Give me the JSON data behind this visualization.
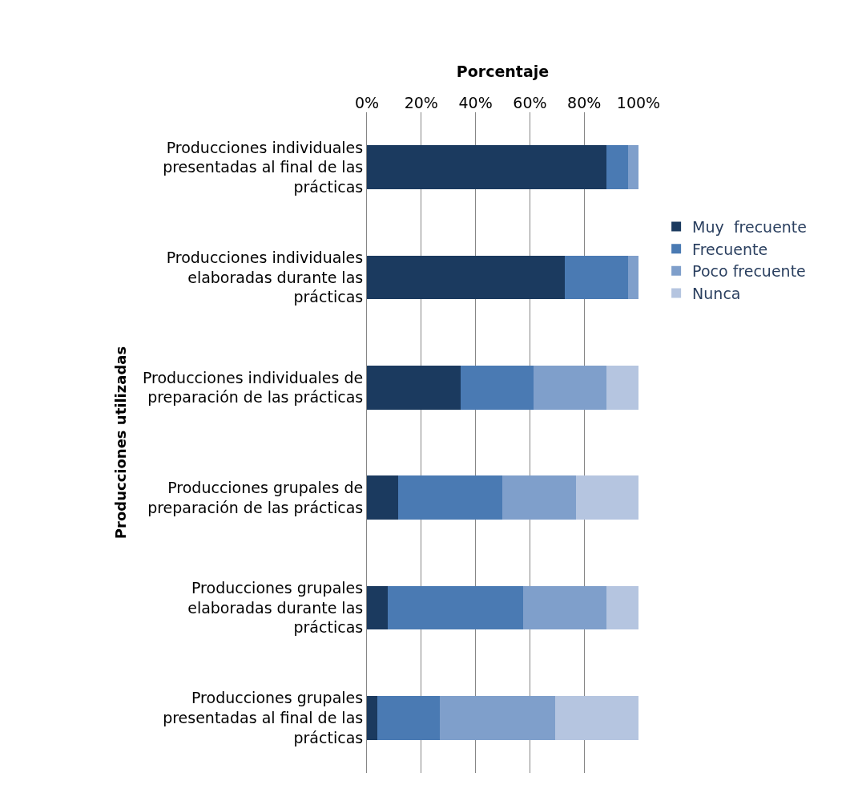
{
  "chart_data": {
    "type": "bar",
    "orientation": "horizontal",
    "stacked": true,
    "xlabel": "Porcentaje",
    "ylabel": "Producciones utilizadas",
    "categories": [
      "Producciones individuales presentadas al final de las prácticas",
      "Producciones individuales elaboradas durante las prácticas",
      "Producciones individuales de preparación de las prácticas",
      "Producciones grupales de preparación de las prácticas",
      "Producciones grupales elaboradas durante las prácticas",
      "Producciones grupales presentadas al final de las prácticas"
    ],
    "series": [
      {
        "name": "Muy  frecuente",
        "color": "#1b3a5f",
        "values": [
          88.2,
          72.9,
          34.5,
          11.5,
          7.7,
          3.8
        ]
      },
      {
        "name": "Frecuente",
        "color": "#4a7ab3",
        "values": [
          8.0,
          23.3,
          26.8,
          38.4,
          49.9,
          23.0
        ]
      },
      {
        "name": "Poco frecuente",
        "color": "#7f9fcb",
        "values": [
          3.8,
          3.8,
          26.9,
          27.1,
          30.6,
          42.5
        ]
      },
      {
        "name": "Nunca",
        "color": "#b5c5e0",
        "values": [
          0,
          0,
          11.8,
          23.0,
          11.8,
          30.7
        ]
      }
    ],
    "xlim": [
      0,
      100
    ],
    "xticks": [
      {
        "value": 0,
        "label": "0%"
      },
      {
        "value": 20,
        "label": "20%"
      },
      {
        "value": 40,
        "label": "40%"
      },
      {
        "value": 60,
        "label": "60%"
      },
      {
        "value": 80,
        "label": "80%"
      },
      {
        "value": 100,
        "label": "100%"
      }
    ],
    "grid": "x",
    "legend": "right"
  }
}
